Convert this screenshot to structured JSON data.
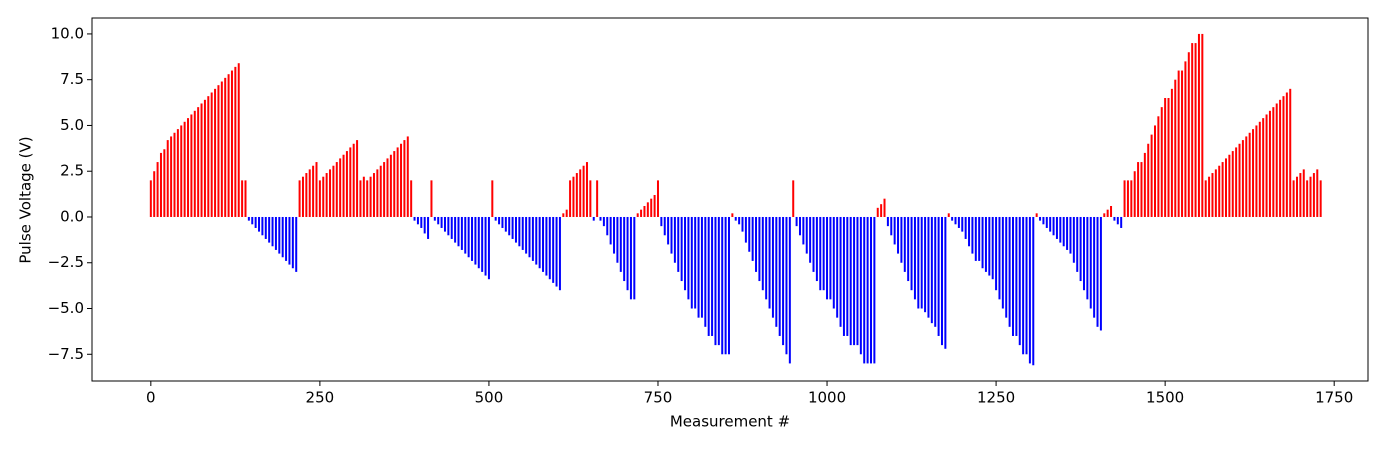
{
  "chart_data": {
    "type": "bar",
    "xlabel": "Measurement #",
    "ylabel": "Pulse Voltage (V)",
    "positive_color": "#ff0000",
    "negative_color": "#0000ff",
    "xlim": [
      -87,
      1800
    ],
    "ylim": [
      -8.96,
      10.87
    ],
    "xticks": [
      0,
      250,
      500,
      750,
      1000,
      1250,
      1500,
      1750
    ],
    "yticks": [
      {
        "value": -7.5,
        "label": "−7.5"
      },
      {
        "value": -5,
        "label": "−5.0"
      },
      {
        "value": -2.5,
        "label": "−2.5"
      },
      {
        "value": 0,
        "label": "0.0"
      },
      2.5,
      {
        "value": 5,
        "label": "5.0"
      },
      7.5,
      {
        "value": 10,
        "label": "10.0"
      }
    ],
    "x": [
      0,
      5,
      10,
      15,
      20,
      25,
      30,
      35,
      40,
      45,
      50,
      55,
      60,
      65,
      70,
      75,
      80,
      85,
      90,
      95,
      100,
      105,
      110,
      115,
      120,
      125,
      130,
      135,
      140,
      145,
      150,
      155,
      160,
      165,
      170,
      175,
      180,
      185,
      190,
      195,
      200,
      205,
      210,
      215,
      220,
      225,
      230,
      235,
      240,
      245,
      250,
      255,
      260,
      265,
      270,
      275,
      280,
      285,
      290,
      295,
      300,
      305,
      310,
      315,
      320,
      325,
      330,
      335,
      340,
      345,
      350,
      355,
      360,
      365,
      370,
      375,
      380,
      385,
      390,
      395,
      400,
      405,
      410,
      415,
      420,
      425,
      430,
      435,
      440,
      445,
      450,
      455,
      460,
      465,
      470,
      475,
      480,
      485,
      490,
      495,
      500,
      505,
      510,
      515,
      520,
      525,
      530,
      535,
      540,
      545,
      550,
      555,
      560,
      565,
      570,
      575,
      580,
      585,
      590,
      595,
      600,
      605,
      610,
      615,
      620,
      625,
      630,
      635,
      640,
      645,
      650,
      655,
      660,
      665,
      670,
      675,
      680,
      685,
      690,
      695,
      700,
      705,
      710,
      715,
      720,
      725,
      730,
      735,
      740,
      745,
      750,
      755,
      760,
      765,
      770,
      775,
      780,
      785,
      790,
      795,
      800,
      805,
      810,
      815,
      820,
      825,
      830,
      835,
      840,
      845,
      850,
      855,
      860,
      865,
      870,
      875,
      880,
      885,
      890,
      895,
      900,
      905,
      910,
      915,
      920,
      925,
      930,
      935,
      940,
      945,
      950,
      955,
      960,
      965,
      970,
      975,
      980,
      985,
      990,
      995,
      1000,
      1005,
      1010,
      1015,
      1020,
      1025,
      1030,
      1035,
      1040,
      1045,
      1050,
      1055,
      1060,
      1065,
      1070,
      1075,
      1080,
      1085,
      1090,
      1095,
      1100,
      1105,
      1110,
      1115,
      1120,
      1125,
      1130,
      1135,
      1140,
      1145,
      1150,
      1155,
      1160,
      1165,
      1170,
      1175,
      1180,
      1185,
      1190,
      1195,
      1200,
      1205,
      1210,
      1215,
      1220,
      1225,
      1230,
      1235,
      1240,
      1245,
      1250,
      1255,
      1260,
      1265,
      1270,
      1275,
      1280,
      1285,
      1290,
      1295,
      1300,
      1305,
      1310,
      1315,
      1320,
      1325,
      1330,
      1335,
      1340,
      1345,
      1350,
      1355,
      1360,
      1365,
      1370,
      1375,
      1380,
      1385,
      1390,
      1395,
      1400,
      1405,
      1410,
      1415,
      1420,
      1425,
      1430,
      1435,
      1440,
      1445,
      1450,
      1455,
      1460,
      1465,
      1470,
      1475,
      1480,
      1485,
      1490,
      1495,
      1500,
      1505,
      1510,
      1515,
      1520,
      1525,
      1530,
      1535,
      1540,
      1545,
      1550,
      1555,
      1560,
      1565,
      1570,
      1575,
      1580,
      1585,
      1590,
      1595,
      1600,
      1605,
      1610,
      1615,
      1620,
      1625,
      1630,
      1635,
      1640,
      1645,
      1650,
      1655,
      1660,
      1665,
      1670,
      1675,
      1680,
      1685,
      1690,
      1695,
      1700,
      1705,
      1710,
      1715,
      1720,
      1725,
      1730
    ],
    "values": [
      2.0,
      2.5,
      3.0,
      3.5,
      3.7,
      4.2,
      4.4,
      4.6,
      4.8,
      5.0,
      5.2,
      5.4,
      5.6,
      5.8,
      6.0,
      6.2,
      6.4,
      6.6,
      6.8,
      7.0,
      7.2,
      7.4,
      7.6,
      7.8,
      8.0,
      8.2,
      8.4,
      2.0,
      2.0,
      -0.2,
      -0.4,
      -0.6,
      -0.8,
      -1.0,
      -1.2,
      -1.4,
      -1.6,
      -1.8,
      -2.0,
      -2.2,
      -2.4,
      -2.6,
      -2.8,
      -3.0,
      2.0,
      2.2,
      2.4,
      2.6,
      2.8,
      3.0,
      2.0,
      2.2,
      2.4,
      2.6,
      2.8,
      3.0,
      3.2,
      3.4,
      3.6,
      3.8,
      4.0,
      4.2,
      2.0,
      2.2,
      2.0,
      2.2,
      2.4,
      2.6,
      2.8,
      3.0,
      3.2,
      3.4,
      3.6,
      3.8,
      4.0,
      4.2,
      4.4,
      2.0,
      -0.2,
      -0.4,
      -0.6,
      -0.9,
      -1.2,
      2.0,
      -0.2,
      -0.4,
      -0.6,
      -0.8,
      -1.0,
      -1.2,
      -1.4,
      -1.6,
      -1.8,
      -2.0,
      -2.2,
      -2.4,
      -2.6,
      -2.8,
      -3.0,
      -3.2,
      -3.4,
      2.0,
      -0.2,
      -0.4,
      -0.6,
      -0.8,
      -1.0,
      -1.2,
      -1.4,
      -1.6,
      -1.8,
      -2.0,
      -2.2,
      -2.4,
      -2.6,
      -2.8,
      -3.0,
      -3.2,
      -3.4,
      -3.6,
      -3.8,
      -4.0,
      0.2,
      0.4,
      2.0,
      2.2,
      2.4,
      2.6,
      2.8,
      3.0,
      2.0,
      -0.2,
      2.0,
      -0.2,
      -0.5,
      -1.0,
      -1.5,
      -2.0,
      -2.5,
      -3.0,
      -3.5,
      -4.0,
      -4.5,
      -4.5,
      0.2,
      0.4,
      0.6,
      0.8,
      1.0,
      1.2,
      2.0,
      -0.5,
      -1.0,
      -1.5,
      -2.0,
      -2.5,
      -3.0,
      -3.5,
      -4.0,
      -4.5,
      -5.0,
      -5.0,
      -5.5,
      -5.5,
      -6.0,
      -6.5,
      -6.5,
      -7.0,
      -7.0,
      -7.5,
      -7.5,
      -7.5,
      0.2,
      -0.2,
      -0.4,
      -0.8,
      -1.4,
      -1.9,
      -2.4,
      -3.0,
      -3.5,
      -4.0,
      -4.5,
      -5.0,
      -5.5,
      -6.0,
      -6.5,
      -7.0,
      -7.5,
      -8.0,
      2.0,
      -0.5,
      -1.0,
      -1.5,
      -2.0,
      -2.5,
      -3.0,
      -3.5,
      -4.0,
      -4.0,
      -4.5,
      -4.5,
      -5.0,
      -5.5,
      -6.0,
      -6.5,
      -6.5,
      -7.0,
      -7.0,
      -7.0,
      -7.5,
      -8.0,
      -8.0,
      -8.0,
      -8.0,
      0.5,
      0.7,
      1.0,
      -0.5,
      -1.0,
      -1.5,
      -2.0,
      -2.5,
      -3.0,
      -3.5,
      -4.0,
      -4.5,
      -5.0,
      -5.0,
      -5.2,
      -5.5,
      -5.8,
      -6.0,
      -6.5,
      -7.0,
      -7.2,
      0.2,
      -0.2,
      -0.4,
      -0.6,
      -0.8,
      -1.2,
      -1.6,
      -2.0,
      -2.4,
      -2.4,
      -2.8,
      -3.0,
      -3.2,
      -3.4,
      -4.0,
      -4.5,
      -5.0,
      -5.5,
      -6.0,
      -6.5,
      -6.5,
      -7.0,
      -7.5,
      -7.5,
      -8.0,
      -8.1,
      0.2,
      -0.2,
      -0.4,
      -0.6,
      -0.8,
      -1.0,
      -1.2,
      -1.4,
      -1.6,
      -1.8,
      -2.0,
      -2.5,
      -3.0,
      -3.5,
      -4.0,
      -4.5,
      -5.0,
      -5.5,
      -6.0,
      -6.2,
      0.2,
      0.4,
      0.6,
      -0.2,
      -0.4,
      -0.6,
      2.0,
      2.0,
      2.0,
      2.5,
      3.0,
      3.0,
      3.5,
      4.0,
      4.5,
      5.0,
      5.5,
      6.0,
      6.5,
      6.5,
      7.0,
      7.5,
      8.0,
      8.0,
      8.5,
      9.0,
      9.5,
      9.5,
      10.0,
      10.0,
      2.0,
      2.2,
      2.4,
      2.6,
      2.8,
      3.0,
      3.2,
      3.4,
      3.6,
      3.8,
      4.0,
      4.2,
      4.4,
      4.6,
      4.8,
      5.0,
      5.2,
      5.4,
      5.6,
      5.8,
      6.0,
      6.2,
      6.4,
      6.6,
      6.8,
      7.0,
      2.0,
      2.2,
      2.4,
      2.6,
      2.0,
      2.2,
      2.4,
      2.6,
      2.0
    ]
  }
}
